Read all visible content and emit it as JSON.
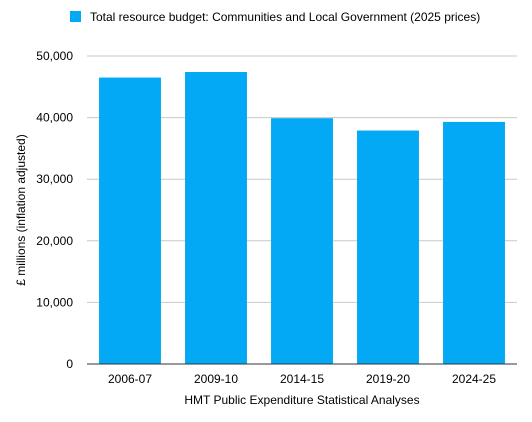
{
  "chart_data": {
    "type": "bar",
    "title": "",
    "legend": {
      "label": "Total resource budget: Communities and Local Government (2025 prices)",
      "position": "top"
    },
    "categories": [
      "2006-07",
      "2009-10",
      "2014-15",
      "2019-20",
      "2024-25"
    ],
    "series": [
      {
        "name": "Total resource budget: Communities and Local Government (2025 prices)",
        "values": [
          46500,
          47400,
          39900,
          37900,
          39300
        ]
      }
    ],
    "xlabel": "HMT Public Expenditure Statistical Analyses",
    "ylabel": "£ millions (inflation adjusted)",
    "ylim": [
      0,
      50000
    ],
    "yticks": [
      0,
      10000,
      20000,
      30000,
      40000,
      50000
    ],
    "ytick_labels": [
      "0",
      "10,000",
      "20,000",
      "30,000",
      "40,000",
      "50,000"
    ],
    "grid": true,
    "colors": {
      "bar": "#03A9F4",
      "grid": "#C8C8C8",
      "axis": "#333333"
    }
  }
}
